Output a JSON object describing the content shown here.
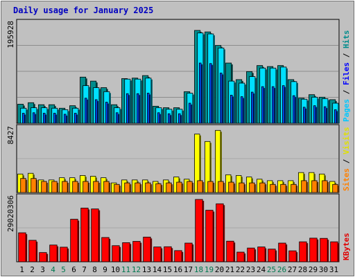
{
  "chart_data": {
    "type": "bar",
    "title": "Daily usage for January 2025",
    "categories": [
      "1",
      "2",
      "3",
      "4",
      "5",
      "6",
      "7",
      "8",
      "9",
      "10",
      "11",
      "12",
      "13",
      "14",
      "15",
      "16",
      "17",
      "18",
      "19",
      "20",
      "21",
      "22",
      "23",
      "24",
      "25",
      "26",
      "27",
      "28",
      "29",
      "30",
      "31"
    ],
    "weekend_days": [
      4,
      5,
      11,
      12,
      18,
      19,
      25,
      26
    ],
    "panels": [
      {
        "name": "top",
        "scale_label": "195928",
        "ylim": [
          0,
          195928
        ],
        "side_label_parts": [
          {
            "text": "Hits",
            "color": "#008c8c"
          },
          {
            "text": " / ",
            "color": "#000000"
          },
          {
            "text": "Files",
            "color": "#0000ff"
          },
          {
            "text": " / ",
            "color": "#000000"
          },
          {
            "text": "Pages",
            "color": "#00c8ff"
          }
        ],
        "series": [
          {
            "name": "Hits",
            "color": "#008c8c",
            "values": [
              38000,
              41000,
              37000,
              37000,
              30000,
              35000,
              92000,
              84000,
              71000,
              37000,
              89000,
              90000,
              95000,
              34000,
              31000,
              31000,
              63000,
              185000,
              182000,
              155000,
              120000,
              87000,
              103000,
              115000,
              113000,
              115000,
              87000,
              50000,
              57000,
              52000,
              47000
            ]
          },
          {
            "name": "Pages",
            "color": "#00e0ff",
            "values": [
              30000,
              31000,
              31000,
              30000,
              27000,
              30000,
              75000,
              71000,
              63000,
              31000,
              88000,
              88000,
              90000,
              31000,
              28000,
              28000,
              60000,
              180000,
              178000,
              150000,
              84000,
              80000,
              93000,
              110000,
              110000,
              112000,
              83000,
              48000,
              52000,
              49000,
              40000
            ]
          },
          {
            "name": "Files",
            "color": "#0050ff",
            "values": [
              20000,
              21000,
              20000,
              20000,
              18000,
              20000,
              50000,
              47000,
              42000,
              21000,
              59000,
              59000,
              60000,
              21000,
              19000,
              19000,
              40000,
              120000,
              119000,
              100000,
              56000,
              53000,
              62000,
              73000,
              73000,
              75000,
              55000,
              32000,
              35000,
              33000,
              27000
            ]
          }
        ]
      },
      {
        "name": "middle",
        "scale_label": "8427",
        "ylim": [
          0,
          8427
        ],
        "side_label_parts": [
          {
            "text": "Visits",
            "color": "#e0e000"
          },
          {
            "text": " / ",
            "color": "#000000"
          },
          {
            "text": "Sites",
            "color": "#ff8000"
          }
        ],
        "series": [
          {
            "name": "Visits",
            "color": "#ffff00",
            "values": [
              2500,
              2600,
              1700,
              1700,
              2000,
              2000,
              2300,
              2200,
              2000,
              1300,
              1700,
              1700,
              1700,
              1500,
              1700,
              2100,
              1800,
              7900,
              6900,
              8400,
              2400,
              2300,
              2100,
              1800,
              1600,
              1600,
              1600,
              2700,
              2700,
              2500,
              1500
            ]
          },
          {
            "name": "Sites",
            "color": "#ff8000",
            "values": [
              1900,
              1900,
              1500,
              1500,
              1500,
              1500,
              1500,
              1500,
              1500,
              1100,
              1300,
              1300,
              1300,
              1200,
              1300,
              1400,
              1500,
              1600,
              1500,
              1500,
              1400,
              1300,
              1300,
              1300,
              1100,
              1100,
              1100,
              1600,
              1600,
              1600,
              1100
            ]
          }
        ]
      },
      {
        "name": "bottom",
        "scale_label": "29020306",
        "ylim": [
          0,
          29020306
        ],
        "side_label_parts": [
          {
            "text": "KBytes",
            "color": "#e00000"
          }
        ],
        "series": [
          {
            "name": "KBytes",
            "color": "#ff0000",
            "values": [
              13500,
              10000,
              4300,
              7800,
              6800,
              19800,
              25000,
              24600,
              11300,
              7500,
              8900,
              9500,
              11500,
              6900,
              7000,
              5200,
              8700,
              29020,
              24000,
              27000,
              9600,
              4500,
              6400,
              6900,
              5900,
              8700,
              5100,
              9300,
              11000,
              10900,
              9300
            ]
          }
        ]
      }
    ]
  }
}
